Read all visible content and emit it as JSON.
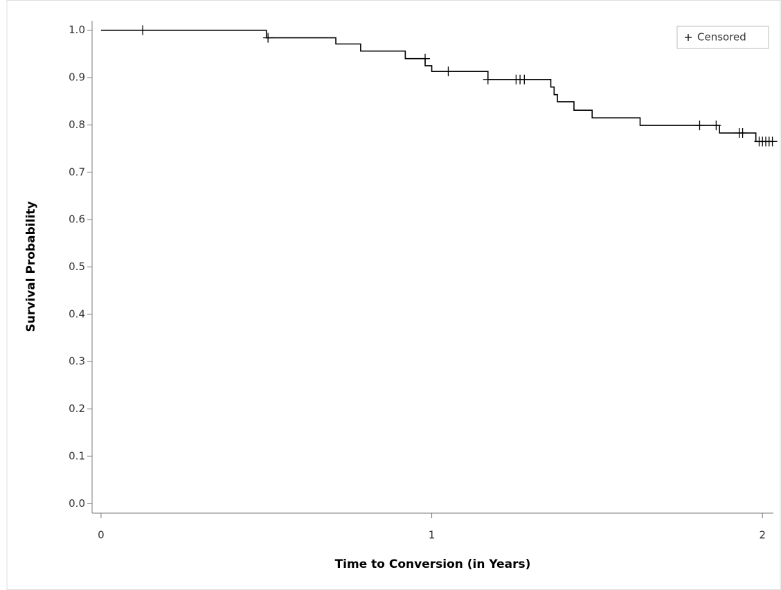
{
  "chart_data": {
    "type": "step",
    "x_label": "Time to Conversion (in Years)",
    "y_label": "Survival Probability",
    "xlim": [
      -0.027,
      2.033
    ],
    "ylim": [
      -0.02,
      1.02
    ],
    "xticks": [
      0,
      1,
      2
    ],
    "yticks": [
      {
        "value": 0,
        "label": "0.0"
      },
      0.1,
      0.2,
      0.3,
      0.4,
      0.5,
      0.6,
      0.7,
      0.8,
      0.9,
      {
        "value": 1,
        "label": "1.0"
      }
    ],
    "color": "#000000",
    "x": [
      0,
      0.5,
      0.71,
      0.785,
      0.92,
      0.98,
      1.0,
      1.17,
      1.36,
      1.37,
      1.38,
      1.43,
      1.485,
      1.63,
      1.87,
      1.98
    ],
    "values": [
      1,
      0.984,
      0.971,
      0.956,
      0.94,
      0.925,
      0.913,
      0.896,
      0.88,
      0.864,
      0.849,
      0.831,
      0.815,
      0.799,
      0.783,
      0.765
    ],
    "censored": {
      "name": "Censored",
      "x": [
        0.126,
        0.505,
        0.98,
        1.05,
        1.17,
        1.255,
        1.267,
        1.28,
        1.81,
        1.86,
        1.93,
        1.94,
        1.99,
        2.0,
        2.01,
        2.02,
        2.03
      ],
      "values": [
        1,
        0.984,
        0.94,
        0.913,
        0.896,
        0.896,
        0.896,
        0.896,
        0.799,
        0.799,
        0.783,
        0.783,
        0.765,
        0.765,
        0.765,
        0.765,
        0.765
      ]
    },
    "legend": "top-right"
  }
}
